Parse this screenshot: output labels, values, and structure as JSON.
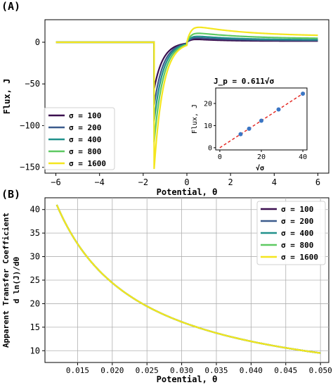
{
  "panels": [
    {
      "label": "(A)",
      "xlabel": "Potential, θ",
      "ylabel": "Flux, J",
      "xticks": [
        "−6",
        "−4",
        "−2",
        "0",
        "2",
        "4",
        "6"
      ],
      "yticks": [
        "0",
        "−50",
        "−100",
        "−150"
      ],
      "legend": [
        "σ = 100",
        "σ = 200",
        "σ = 400",
        "σ = 800",
        "σ = 1600"
      ],
      "inset": {
        "title": "J_p = 0.611√σ",
        "xlabel": "√σ",
        "ylabel": "Flux, J",
        "xticks": [
          "0",
          "20",
          "40"
        ],
        "yticks": [
          "0",
          "10",
          "20"
        ]
      }
    },
    {
      "label": "(B)",
      "xlabel": "Potential, θ",
      "ylabel_line1": "Apparent Transfer Coefficient",
      "ylabel_line2": "d ln(J)/dθ",
      "xticks": [
        "0.015",
        "0.020",
        "0.025",
        "0.030",
        "0.035",
        "0.040",
        "0.045",
        "0.050"
      ],
      "yticks": [
        "10",
        "15",
        "20",
        "25",
        "30",
        "35",
        "40"
      ],
      "legend": [
        "σ = 100",
        "σ = 200",
        "σ = 400",
        "σ = 800",
        "σ = 1600"
      ]
    }
  ],
  "colors": {
    "sigma_100": "#3b0f4f",
    "sigma_200": "#3b5b8c",
    "sigma_400": "#21918c",
    "sigma_800": "#5ec962",
    "sigma_1600": "#f4e61e",
    "fit_line": "#e3211c",
    "points": "#3b76c4"
  },
  "chart_data": [
    {
      "type": "line",
      "title": "",
      "xlabel": "Potential, θ",
      "ylabel": "Flux, J",
      "xlim": [
        -6.5,
        6.5
      ],
      "ylim": [
        -157,
        27
      ],
      "grid": false,
      "legend_position": "lower-left",
      "series": [
        {
          "name": "σ = 100",
          "sigma": 100,
          "peak_cathodic": -56,
          "decay": 0.42,
          "anodic_peak": 4,
          "anodic_decay": 1.2,
          "x": [
            -6,
            -1.5,
            -1.5,
            -1,
            0,
            0.5,
            1,
            2,
            4,
            6
          ],
          "y": [
            0,
            0,
            -56,
            -43,
            -18,
            2,
            4,
            3,
            1.5,
            1
          ]
        },
        {
          "name": "σ = 200",
          "sigma": 200,
          "peak_cathodic": -76,
          "decay": 0.42,
          "anodic_peak": 6,
          "anodic_decay": 1.5,
          "x": [
            -6,
            -1.5,
            -1.5,
            -1,
            0,
            0.5,
            1,
            2,
            4,
            6
          ],
          "y": [
            0,
            0,
            -76,
            -59,
            -25,
            3,
            6,
            5,
            2.5,
            1.5
          ]
        },
        {
          "name": "σ = 400",
          "sigma": 400,
          "peak_cathodic": -95,
          "decay": 0.42,
          "anodic_peak": 8,
          "anodic_decay": 1.8,
          "x": [
            -6,
            -1.5,
            -1.5,
            -1,
            0,
            0.5,
            1,
            2,
            4,
            6
          ],
          "y": [
            0,
            0,
            -95,
            -74,
            -31,
            4,
            8,
            7,
            4,
            2.5
          ]
        },
        {
          "name": "σ = 800",
          "sigma": 800,
          "peak_cathodic": -120,
          "decay": 0.42,
          "anodic_peak": 12,
          "anodic_decay": 2.2,
          "x": [
            -6,
            -1.5,
            -1.5,
            -1,
            0,
            0.5,
            1,
            2,
            4,
            6
          ],
          "y": [
            0,
            0,
            -120,
            -93,
            -39,
            6,
            12,
            10,
            6,
            4
          ]
        },
        {
          "name": "σ = 1600",
          "sigma": 1600,
          "peak_cathodic": -152,
          "decay": 0.42,
          "anodic_peak": 20,
          "anodic_decay": 2.5,
          "x": [
            -6,
            -1.5,
            -1.5,
            -1,
            0,
            0.5,
            1,
            2,
            4,
            6
          ],
          "y": [
            0,
            0,
            -152,
            -118,
            -50,
            10,
            20,
            16,
            9,
            6
          ]
        }
      ]
    },
    {
      "type": "scatter",
      "title": "J_p = 0.611√σ",
      "xlabel": "√σ",
      "ylabel": "Flux, J",
      "xlim": [
        -2,
        42
      ],
      "ylim": [
        -1,
        27
      ],
      "fit": {
        "slope": 0.611,
        "intercept": 0
      },
      "x": [
        10,
        14.1,
        20,
        28.3,
        40
      ],
      "y": [
        6.1,
        8.6,
        12.2,
        17.3,
        24.4
      ]
    },
    {
      "type": "line",
      "title": "",
      "xlabel": "Potential, θ",
      "ylabel": "Apparent Transfer Coefficient d ln(J)/dθ",
      "xlim": [
        0.0103,
        0.0512
      ],
      "ylim": [
        7.5,
        42.5
      ],
      "grid": true,
      "legend_position": "upper-right",
      "series": [
        {
          "name": "σ = 100",
          "x": [
            0.012,
            0.05
          ],
          "y": [
            41,
            9.5
          ],
          "model": "0.475/x"
        },
        {
          "name": "σ = 200",
          "x": [
            0.012,
            0.05
          ],
          "y": [
            41,
            9.5
          ],
          "model": "0.475/x"
        },
        {
          "name": "σ = 400",
          "x": [
            0.012,
            0.05
          ],
          "y": [
            41,
            9.5
          ],
          "model": "0.475/x"
        },
        {
          "name": "σ = 800",
          "x": [
            0.012,
            0.05
          ],
          "y": [
            41,
            9.5
          ],
          "model": "0.475/x"
        },
        {
          "name": "σ = 1600",
          "x": [
            0.012,
            0.05
          ],
          "y": [
            41,
            9.5
          ],
          "model": "0.475/x"
        }
      ]
    }
  ]
}
